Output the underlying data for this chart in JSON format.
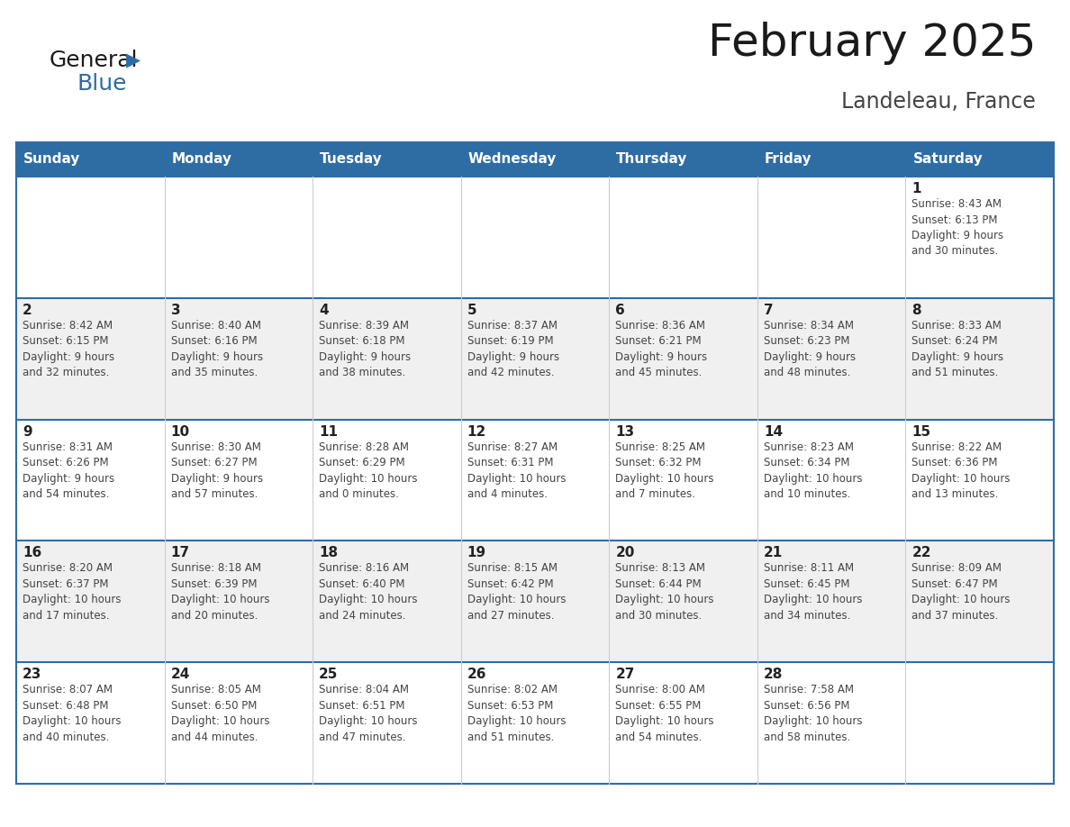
{
  "title": "February 2025",
  "subtitle": "Landeleau, France",
  "days_of_week": [
    "Sunday",
    "Monday",
    "Tuesday",
    "Wednesday",
    "Thursday",
    "Friday",
    "Saturday"
  ],
  "header_bg": "#2E6DA4",
  "header_text": "#FFFFFF",
  "cell_bg_white": "#FFFFFF",
  "cell_bg_gray": "#F0F0F0",
  "border_color": "#2E6DA4",
  "separator_color": "#CCCCCC",
  "text_color": "#444444",
  "day_num_color": "#222222",
  "title_color": "#1A1A1A",
  "subtitle_color": "#444444",
  "logo_general_color": "#1A1A1A",
  "logo_blue_color": "#2E6DA4",
  "calendar_data": [
    [
      {
        "day": null,
        "info": null
      },
      {
        "day": null,
        "info": null
      },
      {
        "day": null,
        "info": null
      },
      {
        "day": null,
        "info": null
      },
      {
        "day": null,
        "info": null
      },
      {
        "day": null,
        "info": null
      },
      {
        "day": 1,
        "info": "Sunrise: 8:43 AM\nSunset: 6:13 PM\nDaylight: 9 hours\nand 30 minutes."
      }
    ],
    [
      {
        "day": 2,
        "info": "Sunrise: 8:42 AM\nSunset: 6:15 PM\nDaylight: 9 hours\nand 32 minutes."
      },
      {
        "day": 3,
        "info": "Sunrise: 8:40 AM\nSunset: 6:16 PM\nDaylight: 9 hours\nand 35 minutes."
      },
      {
        "day": 4,
        "info": "Sunrise: 8:39 AM\nSunset: 6:18 PM\nDaylight: 9 hours\nand 38 minutes."
      },
      {
        "day": 5,
        "info": "Sunrise: 8:37 AM\nSunset: 6:19 PM\nDaylight: 9 hours\nand 42 minutes."
      },
      {
        "day": 6,
        "info": "Sunrise: 8:36 AM\nSunset: 6:21 PM\nDaylight: 9 hours\nand 45 minutes."
      },
      {
        "day": 7,
        "info": "Sunrise: 8:34 AM\nSunset: 6:23 PM\nDaylight: 9 hours\nand 48 minutes."
      },
      {
        "day": 8,
        "info": "Sunrise: 8:33 AM\nSunset: 6:24 PM\nDaylight: 9 hours\nand 51 minutes."
      }
    ],
    [
      {
        "day": 9,
        "info": "Sunrise: 8:31 AM\nSunset: 6:26 PM\nDaylight: 9 hours\nand 54 minutes."
      },
      {
        "day": 10,
        "info": "Sunrise: 8:30 AM\nSunset: 6:27 PM\nDaylight: 9 hours\nand 57 minutes."
      },
      {
        "day": 11,
        "info": "Sunrise: 8:28 AM\nSunset: 6:29 PM\nDaylight: 10 hours\nand 0 minutes."
      },
      {
        "day": 12,
        "info": "Sunrise: 8:27 AM\nSunset: 6:31 PM\nDaylight: 10 hours\nand 4 minutes."
      },
      {
        "day": 13,
        "info": "Sunrise: 8:25 AM\nSunset: 6:32 PM\nDaylight: 10 hours\nand 7 minutes."
      },
      {
        "day": 14,
        "info": "Sunrise: 8:23 AM\nSunset: 6:34 PM\nDaylight: 10 hours\nand 10 minutes."
      },
      {
        "day": 15,
        "info": "Sunrise: 8:22 AM\nSunset: 6:36 PM\nDaylight: 10 hours\nand 13 minutes."
      }
    ],
    [
      {
        "day": 16,
        "info": "Sunrise: 8:20 AM\nSunset: 6:37 PM\nDaylight: 10 hours\nand 17 minutes."
      },
      {
        "day": 17,
        "info": "Sunrise: 8:18 AM\nSunset: 6:39 PM\nDaylight: 10 hours\nand 20 minutes."
      },
      {
        "day": 18,
        "info": "Sunrise: 8:16 AM\nSunset: 6:40 PM\nDaylight: 10 hours\nand 24 minutes."
      },
      {
        "day": 19,
        "info": "Sunrise: 8:15 AM\nSunset: 6:42 PM\nDaylight: 10 hours\nand 27 minutes."
      },
      {
        "day": 20,
        "info": "Sunrise: 8:13 AM\nSunset: 6:44 PM\nDaylight: 10 hours\nand 30 minutes."
      },
      {
        "day": 21,
        "info": "Sunrise: 8:11 AM\nSunset: 6:45 PM\nDaylight: 10 hours\nand 34 minutes."
      },
      {
        "day": 22,
        "info": "Sunrise: 8:09 AM\nSunset: 6:47 PM\nDaylight: 10 hours\nand 37 minutes."
      }
    ],
    [
      {
        "day": 23,
        "info": "Sunrise: 8:07 AM\nSunset: 6:48 PM\nDaylight: 10 hours\nand 40 minutes."
      },
      {
        "day": 24,
        "info": "Sunrise: 8:05 AM\nSunset: 6:50 PM\nDaylight: 10 hours\nand 44 minutes."
      },
      {
        "day": 25,
        "info": "Sunrise: 8:04 AM\nSunset: 6:51 PM\nDaylight: 10 hours\nand 47 minutes."
      },
      {
        "day": 26,
        "info": "Sunrise: 8:02 AM\nSunset: 6:53 PM\nDaylight: 10 hours\nand 51 minutes."
      },
      {
        "day": 27,
        "info": "Sunrise: 8:00 AM\nSunset: 6:55 PM\nDaylight: 10 hours\nand 54 minutes."
      },
      {
        "day": 28,
        "info": "Sunrise: 7:58 AM\nSunset: 6:56 PM\nDaylight: 10 hours\nand 58 minutes."
      },
      {
        "day": null,
        "info": null
      }
    ]
  ]
}
